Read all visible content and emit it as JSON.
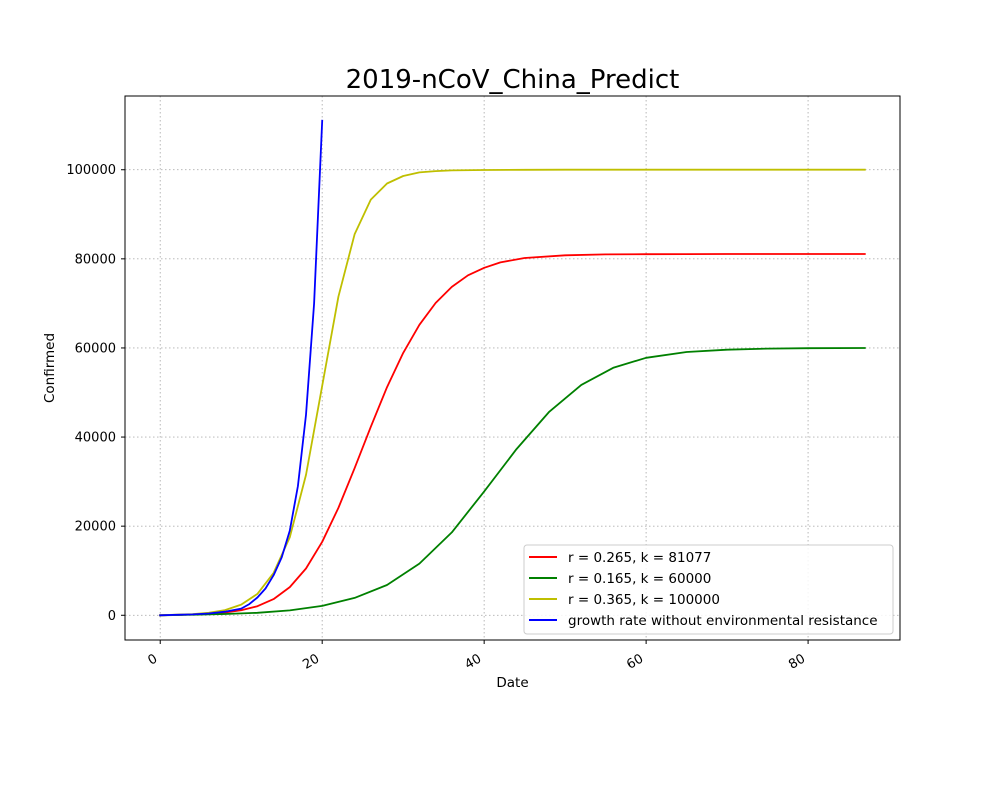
{
  "chart_data": {
    "type": "line",
    "title": "2019-nCoV_China_Predict",
    "xlabel": "Date",
    "ylabel": "Confirmed",
    "xlim": [
      -4.35,
      91.35
    ],
    "ylim": [
      -5550,
      116550
    ],
    "xticks": [
      0,
      20,
      40,
      60,
      80
    ],
    "yticks": [
      0,
      20000,
      40000,
      60000,
      80000,
      100000
    ],
    "xtick_labels": [
      "0",
      "20",
      "40",
      "60",
      "80"
    ],
    "ytick_labels": [
      "0",
      "20000",
      "40000",
      "60000",
      "80000",
      "100000"
    ],
    "grid": true,
    "legend_position": "lower-right",
    "series": [
      {
        "name": "r = 0.265, k = 81077",
        "color": "#ff0000",
        "x": [
          0,
          2,
          4,
          6,
          8,
          10,
          12,
          14,
          16,
          18,
          20,
          22,
          24,
          26,
          28,
          30,
          32,
          34,
          36,
          38,
          40,
          42,
          45,
          50,
          55,
          60,
          65,
          70,
          75,
          80,
          87
        ],
        "y": [
          0,
          80,
          170,
          330,
          620,
          1140,
          2040,
          3640,
          6330,
          10500,
          16500,
          24100,
          33000,
          42300,
          51200,
          58900,
          65200,
          70100,
          73700,
          76300,
          78000,
          79200,
          80200,
          80800,
          81000,
          81050,
          81070,
          81077,
          81077,
          81077,
          81077
        ]
      },
      {
        "name": "r = 0.165, k = 60000",
        "color": "#008000",
        "x": [
          0,
          4,
          8,
          12,
          16,
          20,
          24,
          28,
          32,
          36,
          40,
          44,
          48,
          52,
          56,
          60,
          65,
          70,
          75,
          80,
          87
        ],
        "y": [
          0,
          120,
          280,
          560,
          1100,
          2100,
          3900,
          6800,
          11600,
          18600,
          27800,
          37300,
          45600,
          51700,
          55600,
          57800,
          59100,
          59600,
          59850,
          59950,
          60000
        ]
      },
      {
        "name": "r = 0.365, k = 100000",
        "color": "#bfbf00",
        "x": [
          0,
          2,
          4,
          6,
          8,
          10,
          12,
          14,
          16,
          18,
          20,
          22,
          24,
          26,
          28,
          30,
          32,
          34,
          36,
          40,
          45,
          50,
          60,
          70,
          80,
          87
        ],
        "y": [
          0,
          130,
          260,
          560,
          1160,
          2400,
          4800,
          9500,
          17500,
          31500,
          51500,
          71500,
          85500,
          93300,
          96900,
          98600,
          99400,
          99700,
          99850,
          99950,
          99990,
          100000,
          100000,
          100000,
          100000,
          100000
        ]
      },
      {
        "name": "growth rate without environmental resistance",
        "color": "#0000ff",
        "x": [
          0,
          2,
          4,
          6,
          8,
          10,
          11,
          12,
          13,
          14,
          15,
          16,
          17,
          18,
          19,
          20
        ],
        "y": [
          0,
          100,
          200,
          400,
          800,
          1500,
          2500,
          4000,
          6000,
          9000,
          13000,
          19000,
          29000,
          45000,
          70000,
          111000
        ]
      }
    ]
  }
}
